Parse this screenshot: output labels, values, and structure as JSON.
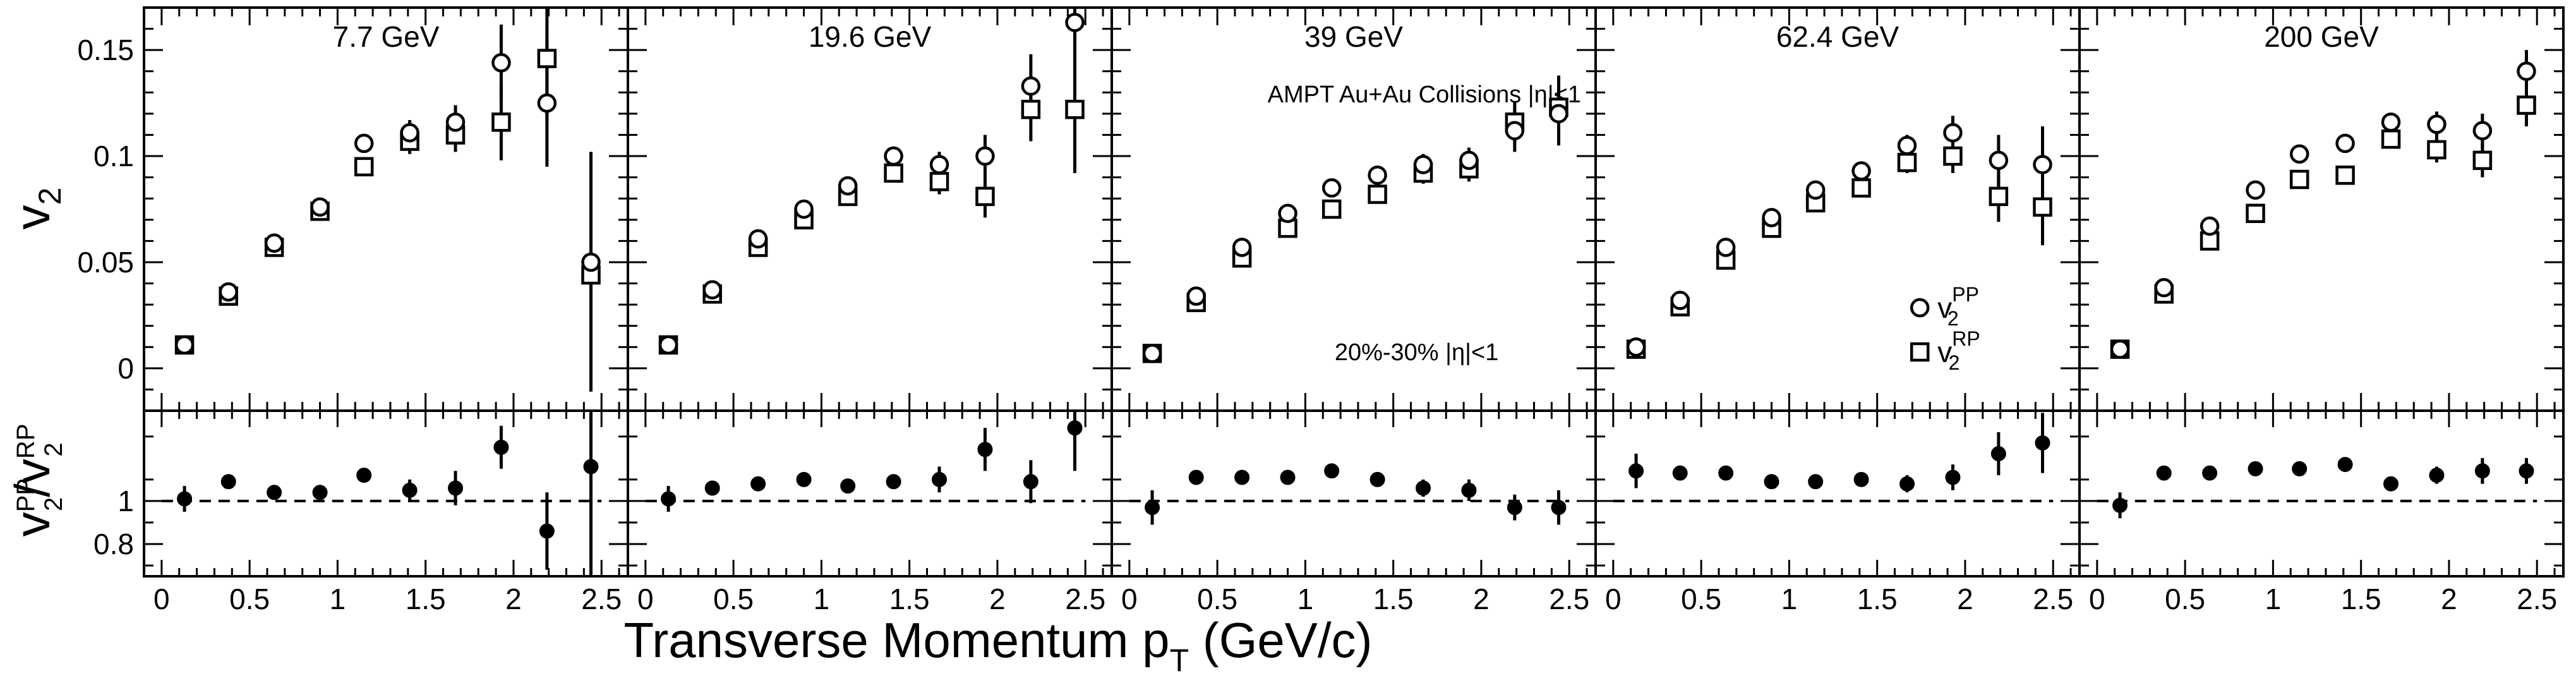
{
  "chart_data": {
    "type": "scatter",
    "xlabel": "Transverse Momentum p_T (GeV/c)",
    "ylabel_top": "v_2",
    "ylabel_bottom": "v_2^PP/v_2^RP",
    "xlim": [
      -0.1,
      2.65
    ],
    "ylim_top": [
      -0.02,
      0.17
    ],
    "ylim_bottom": [
      0.65,
      1.42
    ],
    "x_ticks": [
      "0",
      "0.5",
      "1",
      "1.5",
      "2",
      "2.5"
    ],
    "y_ticks_top": [
      "0",
      "0.05",
      "0.1",
      "0.15"
    ],
    "y_ticks_bottom": [
      "0.8",
      "1"
    ],
    "ratio_reference": 1.0,
    "annotations": [
      "AMPT Au+Au Collisions |η|<1",
      "20%-30% |η|<1"
    ],
    "legend": [
      {
        "marker": "circle",
        "label": "v",
        "sub": "2",
        "sup": "PP"
      },
      {
        "marker": "square",
        "label": "v",
        "sub": "2",
        "sup": "RP"
      }
    ],
    "panels": [
      {
        "title": "7.7 GeV",
        "x": [
          0.13,
          0.38,
          0.64,
          0.9,
          1.15,
          1.41,
          1.67,
          1.93,
          2.19,
          2.44
        ],
        "pp": [
          0.011,
          0.036,
          0.059,
          0.076,
          0.106,
          0.111,
          0.116,
          0.144,
          0.125,
          0.05
        ],
        "pp_err": [
          0.001,
          0.002,
          0.002,
          0.003,
          0.004,
          0.006,
          0.008,
          0.018,
          0.03,
          0.052
        ],
        "rp": [
          0.011,
          0.034,
          0.057,
          0.074,
          0.095,
          0.107,
          0.11,
          0.116,
          0.146,
          0.044
        ],
        "rp_err": [
          0.001,
          0.002,
          0.002,
          0.003,
          0.003,
          0.006,
          0.008,
          0.018,
          0.03,
          0.055
        ],
        "ratio": [
          1.01,
          1.09,
          1.04,
          1.04,
          1.12,
          1.05,
          1.06,
          1.25,
          0.86,
          1.16
        ],
        "ratio_err": [
          0.06,
          0.02,
          0.02,
          0.03,
          0.03,
          0.05,
          0.08,
          0.1,
          0.18,
          0.55
        ]
      },
      {
        "title": "19.6 GeV",
        "x": [
          0.13,
          0.38,
          0.64,
          0.9,
          1.15,
          1.41,
          1.67,
          1.93,
          2.19,
          2.44
        ],
        "pp": [
          0.011,
          0.037,
          0.061,
          0.075,
          0.086,
          0.1,
          0.096,
          0.1,
          0.133,
          0.163
        ],
        "pp_err": [
          0.001,
          0.002,
          0.002,
          0.003,
          0.003,
          0.004,
          0.006,
          0.01,
          0.015,
          0.025
        ],
        "rp": [
          0.011,
          0.035,
          0.057,
          0.07,
          0.081,
          0.092,
          0.088,
          0.081,
          0.122,
          0.122
        ],
        "rp_err": [
          0.001,
          0.002,
          0.002,
          0.003,
          0.003,
          0.004,
          0.006,
          0.01,
          0.015,
          0.03
        ],
        "ratio": [
          1.01,
          1.06,
          1.08,
          1.1,
          1.07,
          1.09,
          1.1,
          1.24,
          1.09,
          1.34
        ],
        "ratio_err": [
          0.06,
          0.02,
          0.02,
          0.02,
          0.02,
          0.03,
          0.06,
          0.1,
          0.1,
          0.2
        ]
      },
      {
        "title": "39 GeV",
        "x": [
          0.13,
          0.38,
          0.64,
          0.9,
          1.15,
          1.41,
          1.67,
          1.93,
          2.19,
          2.44
        ],
        "pp": [
          0.007,
          0.034,
          0.057,
          0.073,
          0.085,
          0.091,
          0.096,
          0.098,
          0.112,
          0.12
        ],
        "pp_err": [
          0.001,
          0.002,
          0.002,
          0.003,
          0.003,
          0.004,
          0.005,
          0.006,
          0.01,
          0.015
        ],
        "rp": [
          0.007,
          0.031,
          0.052,
          0.066,
          0.075,
          0.082,
          0.092,
          0.094,
          0.116,
          0.123
        ],
        "rp_err": [
          0.001,
          0.002,
          0.002,
          0.003,
          0.003,
          0.004,
          0.005,
          0.006,
          0.01,
          0.015
        ],
        "ratio": [
          0.97,
          1.11,
          1.11,
          1.11,
          1.14,
          1.1,
          1.06,
          1.05,
          0.97,
          0.97
        ],
        "ratio_err": [
          0.08,
          0.02,
          0.02,
          0.02,
          0.02,
          0.03,
          0.04,
          0.05,
          0.06,
          0.08
        ]
      },
      {
        "title": "62.4 GeV",
        "x": [
          0.13,
          0.38,
          0.64,
          0.9,
          1.15,
          1.41,
          1.67,
          1.93,
          2.19,
          2.44
        ],
        "pp": [
          0.01,
          0.032,
          0.057,
          0.071,
          0.084,
          0.093,
          0.105,
          0.111,
          0.098,
          0.096
        ],
        "pp_err": [
          0.001,
          0.002,
          0.002,
          0.003,
          0.003,
          0.004,
          0.005,
          0.008,
          0.012,
          0.018
        ],
        "rp": [
          0.009,
          0.029,
          0.051,
          0.066,
          0.078,
          0.085,
          0.097,
          0.1,
          0.081,
          0.076
        ],
        "rp_err": [
          0.001,
          0.002,
          0.002,
          0.003,
          0.003,
          0.004,
          0.005,
          0.008,
          0.012,
          0.018
        ],
        "ratio": [
          1.14,
          1.13,
          1.13,
          1.09,
          1.09,
          1.1,
          1.08,
          1.11,
          1.22,
          1.27
        ],
        "ratio_err": [
          0.08,
          0.02,
          0.02,
          0.02,
          0.02,
          0.03,
          0.04,
          0.06,
          0.1,
          0.14
        ]
      },
      {
        "title": "200 GeV",
        "x": [
          0.13,
          0.38,
          0.64,
          0.9,
          1.15,
          1.41,
          1.67,
          1.93,
          2.19,
          2.44
        ],
        "pp": [
          0.009,
          0.038,
          0.067,
          0.084,
          0.101,
          0.106,
          0.116,
          0.115,
          0.112,
          0.14
        ],
        "pp_err": [
          0.001,
          0.002,
          0.002,
          0.003,
          0.003,
          0.003,
          0.004,
          0.006,
          0.008,
          0.01
        ],
        "rp": [
          0.009,
          0.035,
          0.06,
          0.073,
          0.089,
          0.091,
          0.108,
          0.103,
          0.098,
          0.124
        ],
        "rp_err": [
          0.001,
          0.002,
          0.002,
          0.003,
          0.003,
          0.003,
          0.004,
          0.006,
          0.008,
          0.01
        ],
        "ratio": [
          0.98,
          1.13,
          1.13,
          1.15,
          1.15,
          1.17,
          1.08,
          1.12,
          1.14,
          1.14
        ],
        "ratio_err": [
          0.06,
          0.02,
          0.02,
          0.02,
          0.02,
          0.02,
          0.03,
          0.04,
          0.06,
          0.06
        ]
      }
    ]
  }
}
